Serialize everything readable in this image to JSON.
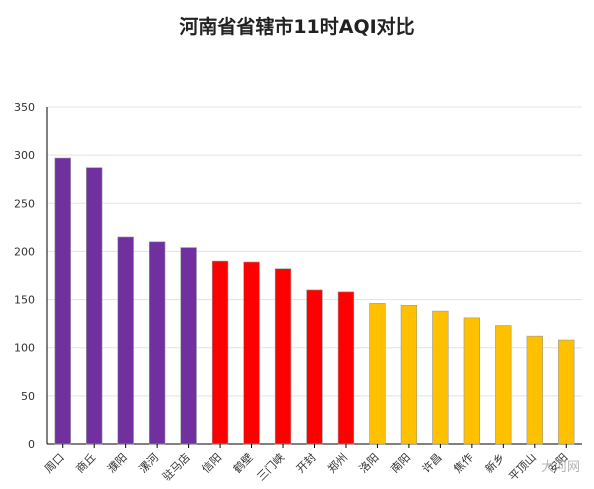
{
  "chart_data": {
    "type": "bar",
    "title": "河南省省辖市11时AQI对比",
    "categories": [
      "周口",
      "商丘",
      "濮阳",
      "漯河",
      "驻马店",
      "信阳",
      "鹤壁",
      "三门峡",
      "开封",
      "郑州",
      "洛阳",
      "南阳",
      "许昌",
      "焦作",
      "新乡",
      "平顶山",
      "安阳"
    ],
    "values": [
      297,
      287,
      215,
      210,
      204,
      190,
      189,
      182,
      160,
      158,
      146,
      144,
      138,
      131,
      123,
      112,
      108
    ],
    "colors": [
      "#7030a0",
      "#7030a0",
      "#7030a0",
      "#7030a0",
      "#7030a0",
      "#ff0000",
      "#ff0000",
      "#ff0000",
      "#ff0000",
      "#ff0000",
      "#ffc000",
      "#ffc000",
      "#ffc000",
      "#ffc000",
      "#ffc000",
      "#ffc000",
      "#ffc000"
    ],
    "ylim": [
      0,
      350
    ],
    "yticks": [
      0,
      50,
      100,
      150,
      200,
      250,
      300,
      350
    ],
    "grid": true,
    "legend": "none"
  },
  "watermark": "大河网"
}
